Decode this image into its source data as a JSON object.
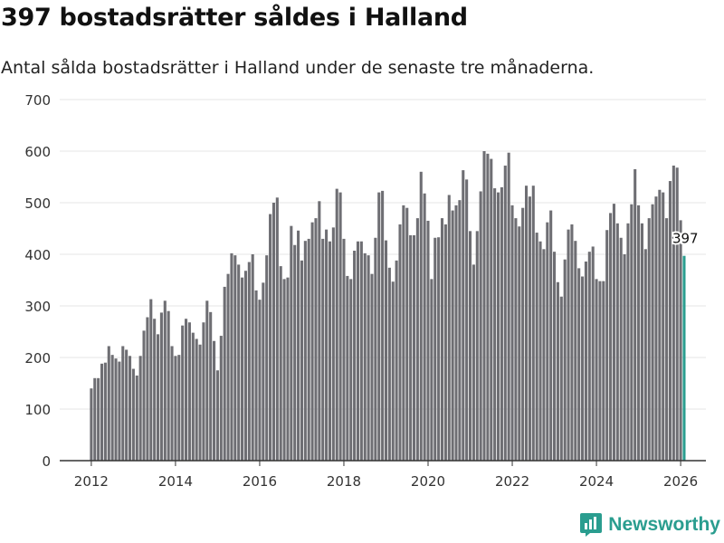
{
  "header": {
    "title": "397 bostadsrätter såldes i Halland",
    "subtitle": "Antal sålda bostadsrätter i Halland under de senaste tre månaderna."
  },
  "brand": {
    "name": "Newsworthy",
    "icon": "bar-chart-logo-icon"
  },
  "colors": {
    "bar": "#6e6e73",
    "highlight": "#2a9d8f",
    "grid": "#e4e4e4",
    "axis": "#333333",
    "brand": "#2a9d8f"
  },
  "chart_data": {
    "type": "bar",
    "title": "397 bostadsrätter såldes i Halland",
    "subtitle": "Antal sålda bostadsrätter i Halland under de senaste tre månaderna.",
    "xlabel": "",
    "ylabel": "",
    "ylim": [
      0,
      700
    ],
    "xlim": [
      2011.25,
      2026.6
    ],
    "yticks": [
      0,
      100,
      200,
      300,
      400,
      500,
      600,
      700
    ],
    "xticks": [
      2012,
      2014,
      2016,
      2018,
      2020,
      2022,
      2024,
      2026
    ],
    "grid": true,
    "x_start": 2012.0,
    "x_step": 0.0833333,
    "highlight_label": "397",
    "values": [
      140,
      160,
      160,
      188,
      190,
      222,
      205,
      198,
      192,
      222,
      215,
      203,
      178,
      165,
      203,
      252,
      278,
      313,
      275,
      245,
      287,
      310,
      290,
      222,
      203,
      205,
      262,
      275,
      268,
      248,
      236,
      225,
      268,
      310,
      288,
      232,
      175,
      242,
      337,
      362,
      402,
      398,
      380,
      355,
      368,
      385,
      400,
      330,
      312,
      345,
      398,
      478,
      500,
      510,
      377,
      352,
      355,
      455,
      418,
      446,
      388,
      426,
      430,
      462,
      470,
      503,
      430,
      448,
      425,
      452,
      527,
      520,
      430,
      358,
      352,
      407,
      425,
      425,
      402,
      398,
      362,
      432,
      520,
      523,
      427,
      374,
      347,
      388,
      458,
      495,
      490,
      437,
      437,
      470,
      560,
      518,
      465,
      352,
      432,
      433,
      470,
      458,
      515,
      485,
      495,
      505,
      563,
      545,
      445,
      380,
      445,
      522,
      600,
      595,
      585,
      528,
      520,
      530,
      572,
      597,
      495,
      470,
      454,
      490,
      533,
      512,
      533,
      442,
      425,
      410,
      462,
      485,
      405,
      346,
      318,
      390,
      448,
      458,
      426,
      373,
      357,
      386,
      405,
      415,
      352,
      348,
      348,
      447,
      480,
      498,
      460,
      432,
      400,
      460,
      497,
      565,
      495,
      460,
      410,
      470,
      497,
      512,
      525,
      520,
      470,
      542,
      572,
      568,
      466,
      397
    ]
  }
}
